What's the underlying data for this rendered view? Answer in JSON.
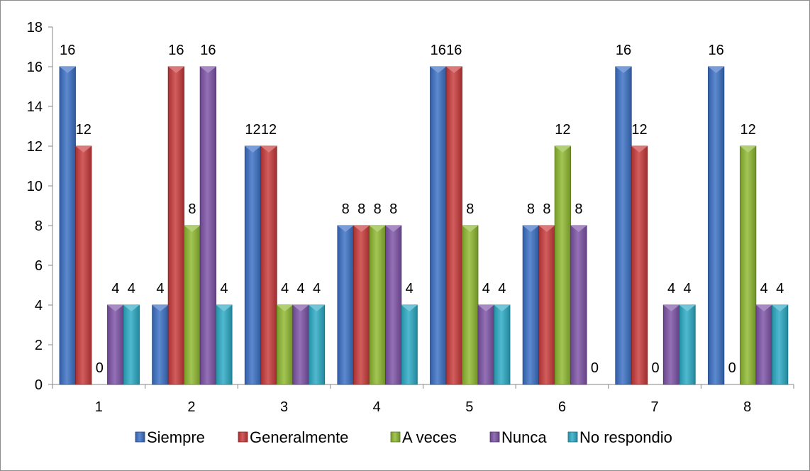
{
  "chart_data": {
    "type": "bar",
    "title": "",
    "xlabel": "",
    "ylabel": "",
    "categories": [
      "1",
      "2",
      "3",
      "4",
      "5",
      "6",
      "7",
      "8"
    ],
    "ylim": [
      0,
      18
    ],
    "y_ticks": [
      "0",
      "2",
      "4",
      "6",
      "8",
      "10",
      "12",
      "14",
      "16",
      "18"
    ],
    "grid": false,
    "legend_position": "bottom",
    "series": [
      {
        "name": "Siempre",
        "color": "#3a6fc4",
        "values": [
          16,
          4,
          12,
          8,
          16,
          8,
          16,
          16
        ]
      },
      {
        "name": "Generalmente",
        "color": "#c8393a",
        "values": [
          12,
          16,
          12,
          8,
          16,
          8,
          12,
          0
        ]
      },
      {
        "name": "A veces",
        "color": "#8db82f",
        "values": [
          0,
          8,
          4,
          8,
          8,
          12,
          0,
          12
        ]
      },
      {
        "name": "Nunca",
        "color": "#7d52a6",
        "values": [
          4,
          16,
          4,
          8,
          4,
          8,
          4,
          4
        ]
      },
      {
        "name": "No respondio",
        "color": "#2aaac4",
        "values": [
          4,
          4,
          4,
          4,
          4,
          0,
          4,
          4
        ]
      }
    ],
    "data_labels": [
      [
        "16",
        "4",
        "12",
        "8",
        "16",
        "8",
        "16",
        "16"
      ],
      [
        "12",
        "16",
        "12",
        "8",
        "16",
        "8",
        "12",
        "0"
      ],
      [
        "0",
        "8",
        "4",
        "8",
        "8",
        "12",
        "0",
        "12"
      ],
      [
        "4",
        "16",
        "4",
        "8",
        "4",
        "8",
        "4",
        "4"
      ],
      [
        "4",
        "4",
        "4",
        "4",
        "4",
        "0",
        "4",
        "4"
      ]
    ]
  }
}
